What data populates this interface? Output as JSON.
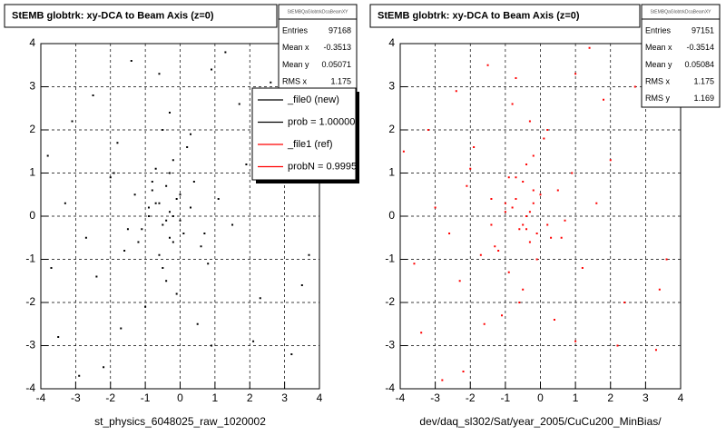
{
  "chart_data": [
    {
      "type": "scatter",
      "title": "StEMB globtrk: xy-DCA to Beam Axis (z=0)",
      "x_label": "st_physics_6048025_raw_1020002",
      "color": "#000000",
      "grid": true,
      "xlim": [
        -4,
        4
      ],
      "ylim": [
        -4,
        4
      ],
      "xticks": [
        -4,
        -3,
        -2,
        -1,
        0,
        1,
        2,
        3,
        4
      ],
      "yticks": [
        -4,
        -3,
        -2,
        -1,
        0,
        1,
        2,
        3,
        4
      ],
      "series": [
        {
          "color": "#000000",
          "x": [
            -0.3,
            -0.5,
            -0.1,
            -0.7,
            0.1,
            -0.4,
            -0.2,
            -0.9,
            0.3,
            -0.6,
            -0.3,
            -0.8,
            0.0,
            -0.5,
            -1.1,
            0.4,
            -0.2,
            -1.3,
            0.6,
            -0.4,
            -0.7,
            0.2,
            -1.6,
            0.8,
            -0.1,
            -2.0,
            1.1,
            -0.5,
            -2.4,
            1.5,
            -0.3,
            -1.0,
            0.5,
            -1.8,
            1.9,
            -2.7,
            2.3,
            -3.1,
            2.8,
            -3.5,
            3.2,
            -0.6,
            0.9,
            -1.4,
            -2.2,
            1.3,
            -3.8,
            3.7,
            -0.9,
            0.7,
            -1.2,
            -0.3,
            0.0,
            -0.8,
            -0.4,
            -2.9,
            2.6,
            -1.7,
            1.7,
            -3.3,
            3.5,
            -0.2,
            -0.6,
            -1.5,
            0.3,
            -2.5,
            2.1,
            -3.7,
            0.9,
            -1.9
          ],
          "values": [
            0.1,
            -0.2,
            0.4,
            0.3,
            -0.4,
            0.7,
            -0.6,
            0.0,
            0.2,
            -0.9,
            1.0,
            0.6,
            -0.1,
            -1.2,
            -0.3,
            0.8,
            1.3,
            0.5,
            -0.7,
            -1.5,
            1.1,
            1.6,
            -0.8,
            -1.1,
            -1.8,
            0.9,
            0.4,
            2.0,
            -1.4,
            -0.2,
            2.4,
            -2.1,
            -2.5,
            1.7,
            1.2,
            -0.5,
            -1.9,
            2.2,
            2.9,
            -2.8,
            -3.2,
            3.3,
            -3.0,
            3.6,
            -3.5,
            3.8,
            1.4,
            -0.9,
            0.2,
            -0.4,
            -0.6,
            -0.5,
            0.5,
            0.8,
            -0.1,
            -3.7,
            3.1,
            -2.6,
            2.6,
            0.3,
            -1.6,
            0.0,
            0.3,
            -0.3,
            1.9,
            2.8,
            -2.9,
            -1.2,
            3.4,
            1.0
          ]
        }
      ],
      "stats": {
        "header": "StEMBQaGlobtrkDcaBeamXY",
        "rows": [
          {
            "label": "Entries",
            "value": 97168
          },
          {
            "label": "Mean x",
            "value": -0.3513
          },
          {
            "label": "Mean y",
            "value": 0.05071
          },
          {
            "label": "RMS x",
            "value": 1.175
          }
        ]
      },
      "legend": [
        {
          "label": "_file0 (new)",
          "color": "#000000"
        },
        {
          "label": "prob = 1.000000",
          "color": "#000000"
        },
        {
          "label": "_file1 (ref)",
          "color": "#ff0000"
        },
        {
          "label": "probN = 0.99952",
          "color": "#ff0000"
        }
      ]
    },
    {
      "type": "scatter",
      "title": "StEMB globtrk: xy-DCA to Beam Axis (z=0)",
      "x_label": "dev/daq_sl302/Sat/year_2005/CuCu200_MinBias/",
      "color": "#ff0000",
      "grid": true,
      "xlim": [
        -4,
        4
      ],
      "ylim": [
        -4,
        4
      ],
      "xticks": [
        -4,
        -3,
        -2,
        -1,
        0,
        1,
        2,
        3,
        4
      ],
      "yticks": [
        -4,
        -3,
        -2,
        -1,
        0,
        1,
        2,
        3,
        4
      ],
      "series": [
        {
          "color": "#ff0000",
          "x": [
            -0.4,
            -0.2,
            -0.6,
            0.0,
            -0.8,
            -0.3,
            -0.5,
            0.2,
            -1.0,
            -0.1,
            -0.7,
            0.3,
            -0.4,
            -1.2,
            0.5,
            -0.9,
            -0.2,
            0.7,
            -1.4,
            -0.5,
            0.1,
            -1.7,
            0.9,
            -0.6,
            -2.1,
            1.2,
            -0.3,
            -2.3,
            1.6,
            -0.8,
            -1.1,
            0.4,
            -1.9,
            2.0,
            -2.6,
            2.4,
            -3.2,
            2.9,
            -3.4,
            3.3,
            -0.7,
            1.0,
            -1.5,
            -2.2,
            1.4,
            -3.9,
            3.6,
            -1.0,
            0.6,
            -1.3,
            -0.2,
            -0.1,
            -0.9,
            -0.5,
            -2.8,
            2.7,
            -1.6,
            1.8,
            -3.0,
            3.4,
            -0.3,
            -0.7,
            -1.4,
            0.2,
            -2.4,
            2.2,
            -3.6,
            1.0,
            -2.0,
            -0.4
          ],
          "values": [
            0.0,
            0.3,
            -0.3,
            0.5,
            0.2,
            -0.6,
            0.8,
            -0.2,
            0.1,
            -1.0,
            0.9,
            -0.5,
            1.2,
            -0.8,
            0.6,
            -1.3,
            1.4,
            -0.1,
            0.4,
            -1.7,
            1.8,
            -0.9,
            1.0,
            -2.0,
            0.7,
            -1.2,
            2.2,
            -1.5,
            0.3,
            2.6,
            -2.3,
            -2.4,
            1.6,
            1.3,
            -0.4,
            -2.0,
            2.0,
            3.0,
            -2.7,
            -3.1,
            3.2,
            -2.9,
            3.5,
            -3.6,
            3.9,
            1.5,
            -1.0,
            0.3,
            -0.5,
            -0.7,
            0.6,
            -0.4,
            0.9,
            -0.2,
            -3.8,
            3.0,
            -2.5,
            2.7,
            0.2,
            -1.7,
            0.1,
            0.4,
            -0.2,
            2.0,
            2.9,
            -3.0,
            -1.1,
            3.3,
            1.1,
            -0.3
          ]
        }
      ],
      "stats": {
        "header": "StEMBQaGlobtrkDcaBeamXY",
        "rows": [
          {
            "label": "Entries",
            "value": 97151
          },
          {
            "label": "Mean x",
            "value": -0.3514
          },
          {
            "label": "Mean y",
            "value": 0.05084
          },
          {
            "label": "RMS x",
            "value": 1.175
          },
          {
            "label": "RMS y",
            "value": 1.169
          }
        ]
      }
    }
  ]
}
